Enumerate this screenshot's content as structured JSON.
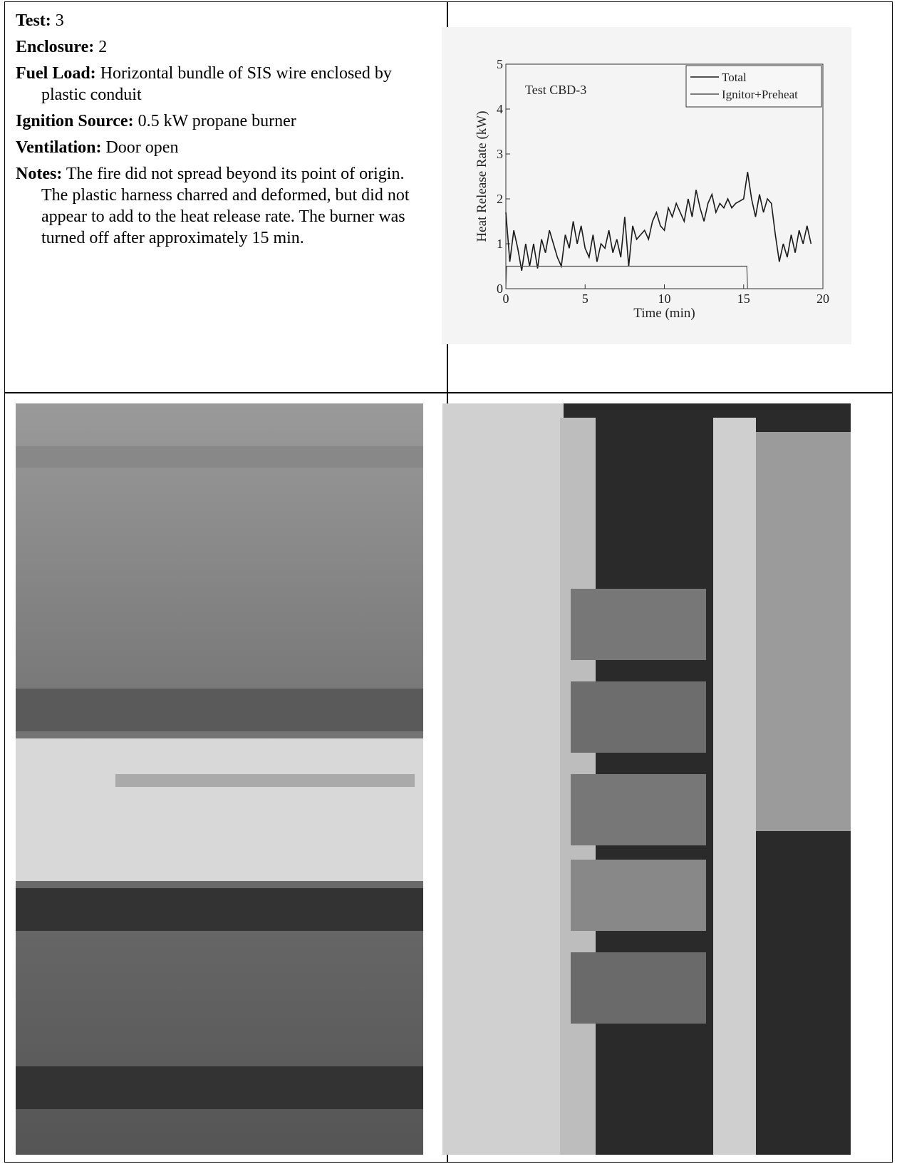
{
  "fields": [
    {
      "label": "Test:",
      "value": "3"
    },
    {
      "label": "Enclosure:",
      "value": "2"
    },
    {
      "label": "Fuel Load:",
      "value": "Horizontal bundle of SIS wire enclosed by plastic conduit"
    },
    {
      "label": "Ignition Source:",
      "value": "0.5 kW propane burner"
    },
    {
      "label": "Ventilation:",
      "value": "Door open"
    },
    {
      "label": "Notes:",
      "value": "The fire did not spread beyond its point of origin. The plastic harness charred and deformed, but did not appear to add to the heat release rate. The burner was turned off after approximately 15 min."
    }
  ],
  "chart_data": {
    "type": "line",
    "annotation": "Test CBD-3",
    "x_label": "Time (min)",
    "y_label": "Heat Release Rate (kW)",
    "xlim": [
      0,
      20
    ],
    "xticks": [
      0,
      5,
      10,
      15,
      20
    ],
    "ylim": [
      0,
      5
    ],
    "yticks": [
      0,
      1,
      2,
      3,
      4,
      5
    ],
    "legend": "upper right",
    "series": [
      {
        "name": "Total",
        "color": "#1a1a1a",
        "x": [
          0,
          0.25,
          0.5,
          0.75,
          1,
          1.25,
          1.5,
          1.75,
          2,
          2.25,
          2.5,
          2.75,
          3,
          3.25,
          3.5,
          3.75,
          4,
          4.25,
          4.5,
          4.75,
          5,
          5.25,
          5.5,
          5.75,
          6,
          6.25,
          6.5,
          6.75,
          7,
          7.25,
          7.5,
          7.75,
          8,
          8.25,
          8.5,
          8.75,
          9,
          9.25,
          9.5,
          9.75,
          10,
          10.25,
          10.5,
          10.75,
          11,
          11.25,
          11.5,
          11.75,
          12,
          12.25,
          12.5,
          12.75,
          13,
          13.25,
          13.5,
          13.75,
          14,
          14.25,
          14.5,
          14.75,
          15,
          15.25,
          15.5,
          15.75,
          16,
          16.25,
          16.5,
          16.75,
          17,
          17.25,
          17.5,
          17.75,
          18,
          18.25,
          18.5,
          18.75,
          19,
          19.25
        ],
        "values": [
          1.7,
          0.6,
          1.3,
          0.9,
          0.4,
          1.0,
          0.5,
          1.0,
          0.45,
          1.1,
          0.8,
          1.3,
          1.0,
          0.7,
          0.5,
          1.2,
          0.9,
          1.5,
          1.0,
          1.4,
          0.9,
          0.7,
          1.2,
          0.6,
          1.0,
          0.9,
          1.3,
          0.8,
          1.1,
          0.7,
          1.6,
          0.5,
          1.4,
          1.1,
          1.2,
          1.3,
          1.1,
          1.5,
          1.7,
          1.4,
          1.3,
          1.8,
          1.6,
          1.9,
          1.7,
          1.5,
          2.0,
          1.6,
          2.2,
          1.8,
          1.5,
          1.9,
          2.1,
          1.7,
          1.9,
          1.8,
          2.0,
          1.8,
          1.9,
          1.95,
          2.0,
          2.6,
          2.0,
          1.6,
          2.1,
          1.7,
          2.0,
          1.9,
          1.2,
          0.6,
          1.0,
          0.7,
          1.2,
          0.8,
          1.3,
          1.0,
          1.4,
          1.0
        ]
      },
      {
        "name": "Ignitor+Preheat",
        "color": "#555555",
        "x": [
          0,
          0.05,
          15.2,
          15.25
        ],
        "values": [
          0,
          0.5,
          0.5,
          0
        ]
      }
    ]
  }
}
